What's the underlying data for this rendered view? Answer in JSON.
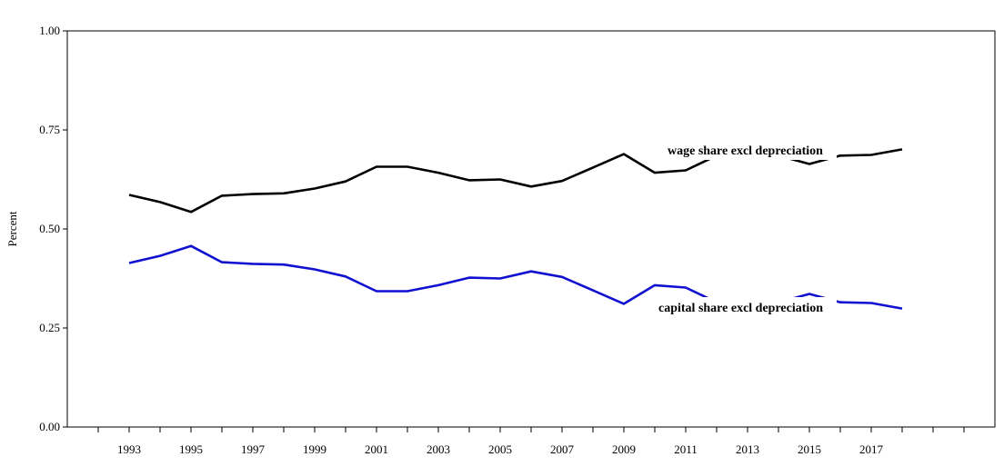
{
  "chart_data": {
    "type": "line",
    "title": "",
    "xlabel": "",
    "ylabel": "Percent",
    "x": [
      1993,
      1994,
      1995,
      1996,
      1997,
      1998,
      1999,
      2000,
      2001,
      2002,
      2003,
      2004,
      2005,
      2006,
      2007,
      2008,
      2009,
      2010,
      2011,
      2012,
      2013,
      2014,
      2015,
      2016,
      2017,
      2018
    ],
    "xlim": [
      1991,
      2021
    ],
    "ylim": [
      0,
      1
    ],
    "x_tick_labels": [
      "1993",
      "1995",
      "1997",
      "1999",
      "2001",
      "2003",
      "2005",
      "2007",
      "2009",
      "2011",
      "2013",
      "2015",
      "2017"
    ],
    "y_tick_labels": [
      "0.00",
      "0.25",
      "0.50",
      "0.75",
      "1.00"
    ],
    "grid": false,
    "series": [
      {
        "name": "wage share excl depreciation",
        "color": "#000000",
        "values": [
          0.586,
          0.568,
          0.543,
          0.584,
          0.588,
          0.59,
          0.602,
          0.62,
          0.657,
          0.657,
          0.642,
          0.623,
          0.625,
          0.607,
          0.621,
          0.655,
          0.689,
          0.642,
          0.648,
          0.685,
          0.69,
          0.685,
          0.664,
          0.685,
          0.687,
          0.701
        ]
      },
      {
        "name": "capital share excl depreciation",
        "color": "#1010d0",
        "values": [
          0.414,
          0.432,
          0.457,
          0.416,
          0.412,
          0.41,
          0.398,
          0.38,
          0.343,
          0.343,
          0.358,
          0.377,
          0.375,
          0.393,
          0.379,
          0.345,
          0.311,
          0.358,
          0.352,
          0.315,
          0.31,
          0.315,
          0.336,
          0.315,
          0.313,
          0.299
        ]
      }
    ]
  }
}
